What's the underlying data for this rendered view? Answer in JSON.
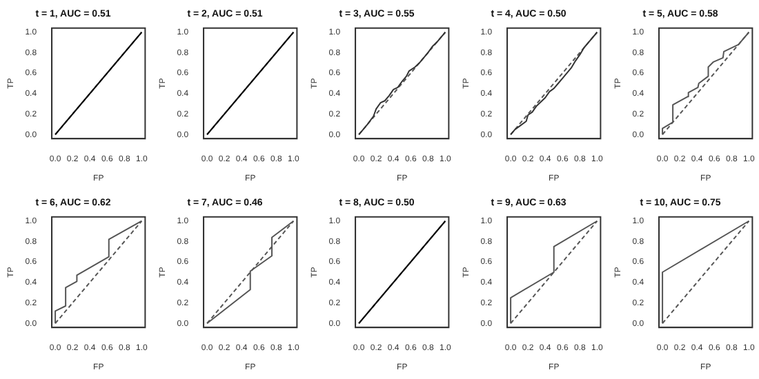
{
  "chart_data": [
    {
      "type": "line",
      "title": "t = 1, AUC = 0.51",
      "xlabel": "FP",
      "ylabel": "TP",
      "xlim": [
        -0.04,
        1.04
      ],
      "ylim": [
        -0.04,
        1.04
      ],
      "xticks": [
        {
          "value": 0,
          "label": "0.0"
        },
        {
          "value": 0.2,
          "label": "0.2"
        },
        {
          "value": 0.4,
          "label": "0.4"
        },
        {
          "value": 0.6,
          "label": "0.6"
        },
        {
          "value": 0.8,
          "label": "0.8"
        },
        {
          "value": 1,
          "label": "1.0"
        }
      ],
      "yticks": [
        {
          "value": 0,
          "label": "0.0"
        },
        {
          "value": 0.2,
          "label": "0.2"
        },
        {
          "value": 0.4,
          "label": "0.4"
        },
        {
          "value": 0.6,
          "label": "0.6"
        },
        {
          "value": 0.8,
          "label": "0.8"
        },
        {
          "value": 1,
          "label": "1.0"
        }
      ],
      "grid": false,
      "marker": "none",
      "series": [
        {
          "color": "#000000",
          "line_style": "solid",
          "x": [
            0,
            1
          ],
          "values": [
            0,
            1
          ]
        },
        {
          "color": "#555555",
          "line_style": "dashed",
          "x": [
            0,
            1
          ],
          "values": [
            0,
            1
          ]
        }
      ]
    },
    {
      "type": "line",
      "title": "t = 2, AUC = 0.51",
      "xlabel": "FP",
      "ylabel": "TP",
      "xlim": [
        -0.04,
        1.04
      ],
      "ylim": [
        -0.04,
        1.04
      ],
      "xticks": [
        {
          "value": 0,
          "label": "0.0"
        },
        {
          "value": 0.2,
          "label": "0.2"
        },
        {
          "value": 0.4,
          "label": "0.4"
        },
        {
          "value": 0.6,
          "label": "0.6"
        },
        {
          "value": 0.8,
          "label": "0.8"
        },
        {
          "value": 1,
          "label": "1.0"
        }
      ],
      "yticks": [
        {
          "value": 0,
          "label": "0.0"
        },
        {
          "value": 0.2,
          "label": "0.2"
        },
        {
          "value": 0.4,
          "label": "0.4"
        },
        {
          "value": 0.6,
          "label": "0.6"
        },
        {
          "value": 0.8,
          "label": "0.8"
        },
        {
          "value": 1,
          "label": "1.0"
        }
      ],
      "grid": false,
      "marker": "none",
      "series": [
        {
          "color": "#000000",
          "line_style": "solid",
          "x": [
            0,
            1
          ],
          "values": [
            0,
            1
          ]
        },
        {
          "color": "#555555",
          "line_style": "dashed",
          "x": [
            0,
            1
          ],
          "values": [
            0,
            1
          ]
        }
      ]
    },
    {
      "type": "line",
      "title": "t = 3, AUC = 0.55",
      "xlabel": "FP",
      "ylabel": "TP",
      "xlim": [
        -0.04,
        1.04
      ],
      "ylim": [
        -0.04,
        1.04
      ],
      "xticks": [
        {
          "value": 0,
          "label": "0.0"
        },
        {
          "value": 0.2,
          "label": "0.2"
        },
        {
          "value": 0.4,
          "label": "0.4"
        },
        {
          "value": 0.6,
          "label": "0.6"
        },
        {
          "value": 0.8,
          "label": "0.8"
        },
        {
          "value": 1,
          "label": "1.0"
        }
      ],
      "yticks": [
        {
          "value": 0,
          "label": "0.0"
        },
        {
          "value": 0.2,
          "label": "0.2"
        },
        {
          "value": 0.4,
          "label": "0.4"
        },
        {
          "value": 0.6,
          "label": "0.6"
        },
        {
          "value": 0.8,
          "label": "0.8"
        },
        {
          "value": 1,
          "label": "1.0"
        }
      ],
      "grid": false,
      "marker": "none",
      "series": [
        {
          "color": "#333333",
          "line_style": "solid",
          "x": [
            0,
            0.05,
            0.1,
            0.17,
            0.2,
            0.25,
            0.3,
            0.35,
            0.4,
            0.45,
            0.5,
            0.55,
            0.58,
            0.65,
            0.7,
            0.75,
            0.8,
            0.85,
            0.9,
            0.95,
            1
          ],
          "values": [
            0,
            0.05,
            0.1,
            0.18,
            0.25,
            0.31,
            0.33,
            0.38,
            0.44,
            0.46,
            0.52,
            0.57,
            0.62,
            0.66,
            0.7,
            0.75,
            0.8,
            0.86,
            0.9,
            0.95,
            1
          ]
        },
        {
          "color": "#555555",
          "line_style": "dashed",
          "x": [
            0,
            1
          ],
          "values": [
            0,
            1
          ]
        }
      ]
    },
    {
      "type": "line",
      "title": "t = 4, AUC = 0.50",
      "xlabel": "FP",
      "ylabel": "TP",
      "xlim": [
        -0.04,
        1.04
      ],
      "ylim": [
        -0.04,
        1.04
      ],
      "xticks": [
        {
          "value": 0,
          "label": "0.0"
        },
        {
          "value": 0.2,
          "label": "0.2"
        },
        {
          "value": 0.4,
          "label": "0.4"
        },
        {
          "value": 0.6,
          "label": "0.6"
        },
        {
          "value": 0.8,
          "label": "0.8"
        },
        {
          "value": 1,
          "label": "1.0"
        }
      ],
      "yticks": [
        {
          "value": 0,
          "label": "0.0"
        },
        {
          "value": 0.2,
          "label": "0.2"
        },
        {
          "value": 0.4,
          "label": "0.4"
        },
        {
          "value": 0.6,
          "label": "0.6"
        },
        {
          "value": 0.8,
          "label": "0.8"
        },
        {
          "value": 1,
          "label": "1.0"
        }
      ],
      "grid": false,
      "marker": "none",
      "series": [
        {
          "color": "#333333",
          "line_style": "solid",
          "x": [
            0,
            0.05,
            0.1,
            0.18,
            0.2,
            0.25,
            0.3,
            0.4,
            0.45,
            0.5,
            0.55,
            0.6,
            0.65,
            0.7,
            0.75,
            0.8,
            0.85,
            0.9,
            1
          ],
          "values": [
            0,
            0.05,
            0.08,
            0.13,
            0.19,
            0.22,
            0.28,
            0.36,
            0.42,
            0.45,
            0.5,
            0.55,
            0.6,
            0.65,
            0.72,
            0.78,
            0.85,
            0.9,
            1
          ]
        },
        {
          "color": "#555555",
          "line_style": "dashed",
          "x": [
            0,
            1
          ],
          "values": [
            0,
            1
          ]
        }
      ]
    },
    {
      "type": "line",
      "title": "t = 5, AUC = 0.58",
      "xlabel": "FP",
      "ylabel": "TP",
      "xlim": [
        -0.04,
        1.04
      ],
      "ylim": [
        -0.04,
        1.04
      ],
      "xticks": [
        {
          "value": 0,
          "label": "0.0"
        },
        {
          "value": 0.2,
          "label": "0.2"
        },
        {
          "value": 0.4,
          "label": "0.4"
        },
        {
          "value": 0.6,
          "label": "0.6"
        },
        {
          "value": 0.8,
          "label": "0.8"
        },
        {
          "value": 1,
          "label": "1.0"
        }
      ],
      "yticks": [
        {
          "value": 0,
          "label": "0.0"
        },
        {
          "value": 0.2,
          "label": "0.2"
        },
        {
          "value": 0.4,
          "label": "0.4"
        },
        {
          "value": 0.6,
          "label": "0.6"
        },
        {
          "value": 0.8,
          "label": "0.8"
        },
        {
          "value": 1,
          "label": "1.0"
        }
      ],
      "grid": false,
      "marker": "none",
      "series": [
        {
          "color": "#555555",
          "line_style": "solid",
          "x": [
            0,
            0,
            0.12,
            0.12,
            0.29,
            0.3,
            0.41,
            0.42,
            0.53,
            0.53,
            0.59,
            0.7,
            0.71,
            0.88,
            0.94,
            1
          ],
          "values": [
            0,
            0.06,
            0.12,
            0.29,
            0.37,
            0.41,
            0.46,
            0.5,
            0.57,
            0.66,
            0.71,
            0.75,
            0.81,
            0.88,
            0.94,
            1
          ]
        },
        {
          "color": "#555555",
          "line_style": "dashed",
          "x": [
            0,
            1
          ],
          "values": [
            0,
            1
          ]
        }
      ]
    },
    {
      "type": "line",
      "title": "t = 6, AUC = 0.62",
      "xlabel": "FP",
      "ylabel": "TP",
      "xlim": [
        -0.04,
        1.04
      ],
      "ylim": [
        -0.04,
        1.04
      ],
      "xticks": [
        {
          "value": 0,
          "label": "0.0"
        },
        {
          "value": 0.2,
          "label": "0.2"
        },
        {
          "value": 0.4,
          "label": "0.4"
        },
        {
          "value": 0.6,
          "label": "0.6"
        },
        {
          "value": 0.8,
          "label": "0.8"
        },
        {
          "value": 1,
          "label": "1.0"
        }
      ],
      "yticks": [
        {
          "value": 0,
          "label": "0.0"
        },
        {
          "value": 0.2,
          "label": "0.2"
        },
        {
          "value": 0.4,
          "label": "0.4"
        },
        {
          "value": 0.6,
          "label": "0.6"
        },
        {
          "value": 0.8,
          "label": "0.8"
        },
        {
          "value": 1,
          "label": "1.0"
        }
      ],
      "grid": false,
      "marker": "none",
      "series": [
        {
          "color": "#555555",
          "line_style": "solid",
          "x": [
            0,
            0,
            0.12,
            0.12,
            0.25,
            0.25,
            0.62,
            0.62,
            1
          ],
          "values": [
            0,
            0.12,
            0.17,
            0.35,
            0.41,
            0.47,
            0.65,
            0.82,
            1
          ]
        },
        {
          "color": "#555555",
          "line_style": "dashed",
          "x": [
            0,
            1
          ],
          "values": [
            0,
            1
          ]
        }
      ]
    },
    {
      "type": "line",
      "title": "t = 7, AUC = 0.46",
      "xlabel": "FP",
      "ylabel": "TP",
      "xlim": [
        -0.04,
        1.04
      ],
      "ylim": [
        -0.04,
        1.04
      ],
      "xticks": [
        {
          "value": 0,
          "label": "0.0"
        },
        {
          "value": 0.2,
          "label": "0.2"
        },
        {
          "value": 0.4,
          "label": "0.4"
        },
        {
          "value": 0.6,
          "label": "0.6"
        },
        {
          "value": 0.8,
          "label": "0.8"
        },
        {
          "value": 1,
          "label": "1.0"
        }
      ],
      "yticks": [
        {
          "value": 0,
          "label": "0.0"
        },
        {
          "value": 0.2,
          "label": "0.2"
        },
        {
          "value": 0.4,
          "label": "0.4"
        },
        {
          "value": 0.6,
          "label": "0.6"
        },
        {
          "value": 0.8,
          "label": "0.8"
        },
        {
          "value": 1,
          "label": "1.0"
        }
      ],
      "grid": false,
      "marker": "none",
      "series": [
        {
          "color": "#555555",
          "line_style": "solid",
          "x": [
            0,
            0.5,
            0.5,
            0.75,
            0.75,
            1
          ],
          "values": [
            0,
            0.33,
            0.51,
            0.66,
            0.84,
            1
          ]
        },
        {
          "color": "#555555",
          "line_style": "dashed",
          "x": [
            0,
            1
          ],
          "values": [
            0,
            1
          ]
        }
      ]
    },
    {
      "type": "line",
      "title": "t = 8, AUC = 0.50",
      "xlabel": "FP",
      "ylabel": "TP",
      "xlim": [
        -0.04,
        1.04
      ],
      "ylim": [
        -0.04,
        1.04
      ],
      "xticks": [
        {
          "value": 0,
          "label": "0.0"
        },
        {
          "value": 0.2,
          "label": "0.2"
        },
        {
          "value": 0.4,
          "label": "0.4"
        },
        {
          "value": 0.6,
          "label": "0.6"
        },
        {
          "value": 0.8,
          "label": "0.8"
        },
        {
          "value": 1,
          "label": "1.0"
        }
      ],
      "yticks": [
        {
          "value": 0,
          "label": "0.0"
        },
        {
          "value": 0.2,
          "label": "0.2"
        },
        {
          "value": 0.4,
          "label": "0.4"
        },
        {
          "value": 0.6,
          "label": "0.6"
        },
        {
          "value": 0.8,
          "label": "0.8"
        },
        {
          "value": 1,
          "label": "1.0"
        }
      ],
      "grid": false,
      "marker": "none",
      "series": [
        {
          "color": "#000000",
          "line_style": "solid",
          "x": [
            0,
            1
          ],
          "values": [
            0,
            1
          ]
        },
        {
          "color": "#555555",
          "line_style": "dashed",
          "x": [
            0,
            1
          ],
          "values": [
            0,
            1
          ]
        }
      ]
    },
    {
      "type": "line",
      "title": "t = 9, AUC = 0.63",
      "xlabel": "FP",
      "ylabel": "TP",
      "xlim": [
        -0.04,
        1.04
      ],
      "ylim": [
        -0.04,
        1.04
      ],
      "xticks": [
        {
          "value": 0,
          "label": "0.0"
        },
        {
          "value": 0.2,
          "label": "0.2"
        },
        {
          "value": 0.4,
          "label": "0.4"
        },
        {
          "value": 0.6,
          "label": "0.6"
        },
        {
          "value": 0.8,
          "label": "0.8"
        },
        {
          "value": 1,
          "label": "1.0"
        }
      ],
      "yticks": [
        {
          "value": 0,
          "label": "0.0"
        },
        {
          "value": 0.2,
          "label": "0.2"
        },
        {
          "value": 0.4,
          "label": "0.4"
        },
        {
          "value": 0.6,
          "label": "0.6"
        },
        {
          "value": 0.8,
          "label": "0.8"
        },
        {
          "value": 1,
          "label": "1.0"
        }
      ],
      "grid": false,
      "marker": "none",
      "series": [
        {
          "color": "#555555",
          "line_style": "solid",
          "x": [
            0,
            0,
            0.5,
            0.5,
            1
          ],
          "values": [
            0,
            0.25,
            0.5,
            0.75,
            1
          ]
        },
        {
          "color": "#555555",
          "line_style": "dashed",
          "x": [
            0,
            1
          ],
          "values": [
            0,
            1
          ]
        }
      ]
    },
    {
      "type": "line",
      "title": "t = 10, AUC = 0.75",
      "xlabel": "FP",
      "ylabel": "TP",
      "xlim": [
        -0.04,
        1.04
      ],
      "ylim": [
        -0.04,
        1.04
      ],
      "xticks": [
        {
          "value": 0,
          "label": "0.0"
        },
        {
          "value": 0.2,
          "label": "0.2"
        },
        {
          "value": 0.4,
          "label": "0.4"
        },
        {
          "value": 0.6,
          "label": "0.6"
        },
        {
          "value": 0.8,
          "label": "0.8"
        },
        {
          "value": 1,
          "label": "1.0"
        }
      ],
      "yticks": [
        {
          "value": 0,
          "label": "0.0"
        },
        {
          "value": 0.2,
          "label": "0.2"
        },
        {
          "value": 0.4,
          "label": "0.4"
        },
        {
          "value": 0.6,
          "label": "0.6"
        },
        {
          "value": 0.8,
          "label": "0.8"
        },
        {
          "value": 1,
          "label": "1.0"
        }
      ],
      "grid": false,
      "marker": "none",
      "series": [
        {
          "color": "#555555",
          "line_style": "solid",
          "x": [
            0,
            0,
            1
          ],
          "values": [
            0,
            0.5,
            1
          ]
        },
        {
          "color": "#555555",
          "line_style": "dashed",
          "x": [
            0,
            1
          ],
          "values": [
            0,
            1
          ]
        }
      ]
    }
  ]
}
